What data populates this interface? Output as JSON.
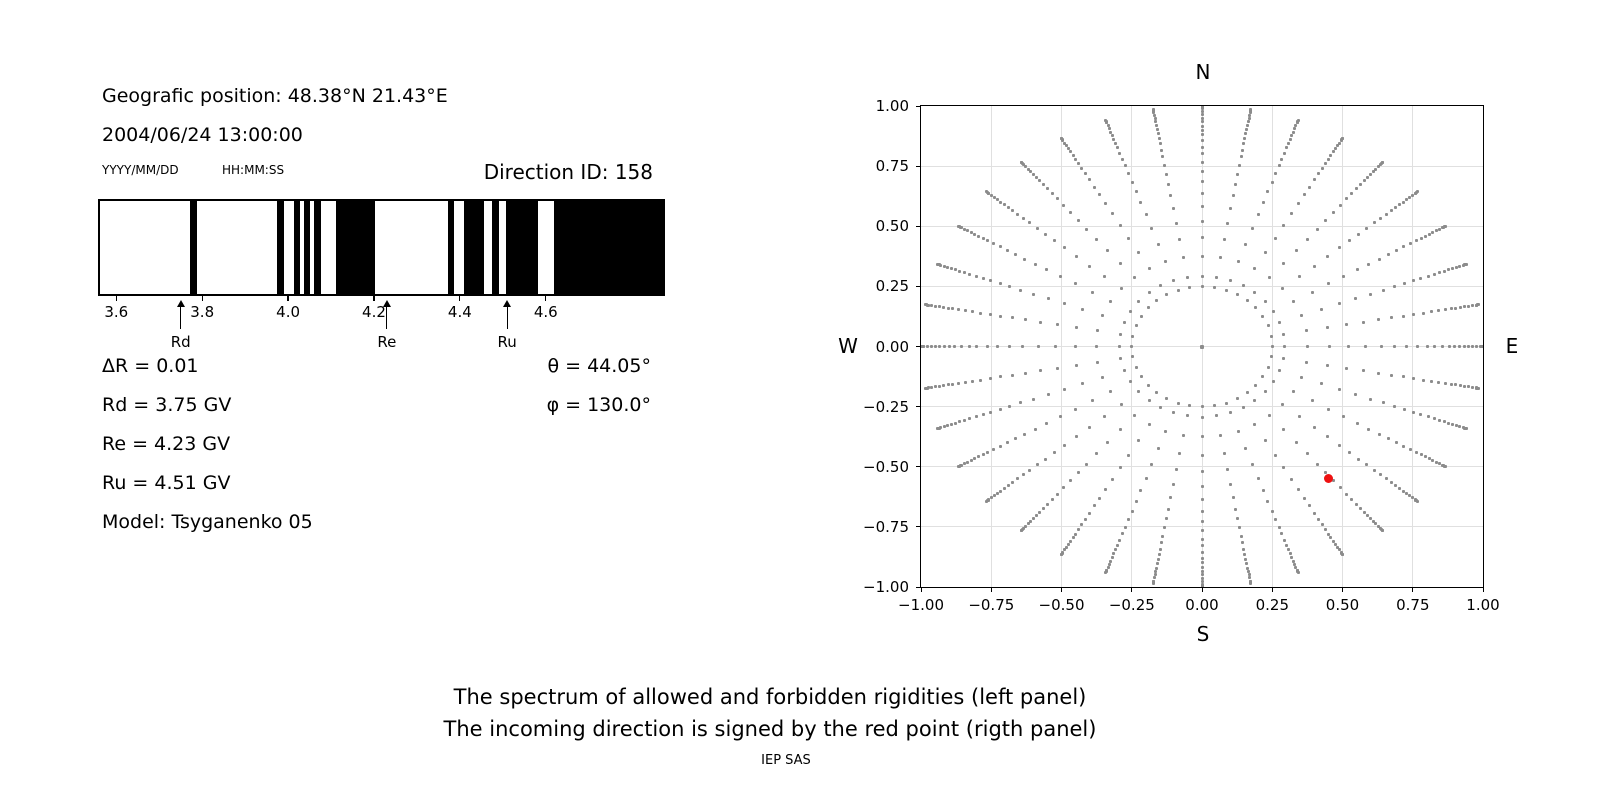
{
  "header": {
    "position_line": "Geografic position: 48.38°N 21.43°E",
    "datetime_line": "2004/06/24 13:00:00",
    "date_format_label": "YYYY/MM/DD",
    "time_format_label": "HH:MM:SS",
    "direction_id": "Direction ID: 158"
  },
  "left_values": {
    "delta_r": "ΔR = 0.01",
    "rd": "Rd = 3.75 GV",
    "re": "Re = 4.23 GV",
    "ru": "Ru = 4.51 GV",
    "model": "Model: Tsyganenko 05",
    "theta": "θ = 44.05°",
    "phi": "φ = 130.0°"
  },
  "caption": {
    "line1": "The spectrum of allowed and forbidden rigidities (left panel)",
    "line2": "The incoming direction is signed by the red point (rigth panel)",
    "footer": "IEP SAS"
  },
  "chart_data": [
    {
      "name": "rigidity-spectrum",
      "type": "bar",
      "description": "Barcode spectrum: black bands = allowed rigidities, white = forbidden",
      "xlim": [
        3.562,
        4.873
      ],
      "xticks": [
        3.6,
        3.8,
        4.0,
        4.2,
        4.4,
        4.6
      ],
      "xtick_labels": [
        "3.6",
        "3.8",
        "4.0",
        "4.2",
        "4.4",
        "4.6"
      ],
      "allowed_bands_gv": [
        [
          3.771,
          3.788
        ],
        [
          3.975,
          3.991
        ],
        [
          4.014,
          4.028
        ],
        [
          4.038,
          4.051
        ],
        [
          4.061,
          4.077
        ],
        [
          4.112,
          4.202
        ],
        [
          4.373,
          4.387
        ],
        [
          4.41,
          4.456
        ],
        [
          4.475,
          4.491
        ],
        [
          4.507,
          4.583
        ],
        [
          4.618,
          4.873
        ]
      ],
      "colors": {
        "allowed": "#000000",
        "forbidden": "#ffffff"
      },
      "markers": [
        {
          "label": "Rd",
          "value": 3.75
        },
        {
          "label": "Re",
          "value": 4.23
        },
        {
          "label": "Ru",
          "value": 4.51
        }
      ]
    },
    {
      "name": "incoming-direction-map",
      "type": "scatter",
      "description": "Asymptotic direction map: gray dot rays every 10 degrees from inner ring r=0.25 out to r=1.0; red point marks incoming direction",
      "xlim": [
        -1,
        1
      ],
      "ylim": [
        -1,
        1
      ],
      "ticks": [
        -1,
        -0.75,
        -0.5,
        -0.25,
        0,
        0.25,
        0.5,
        0.75,
        1
      ],
      "tick_labels": [
        "−1.00",
        "−0.75",
        "−0.50",
        "−0.25",
        "0.00",
        "0.25",
        "0.50",
        "0.75",
        "1.00"
      ],
      "compass": {
        "n": "N",
        "s": "S",
        "e": "E",
        "w": "W"
      },
      "ray_angles_deg": [
        0,
        10,
        20,
        30,
        40,
        50,
        60,
        70,
        80,
        90,
        100,
        110,
        120,
        130,
        140,
        150,
        160,
        170,
        180,
        190,
        200,
        210,
        220,
        230,
        240,
        250,
        260,
        270,
        280,
        290,
        300,
        310,
        320,
        330,
        340,
        350
      ],
      "ray_radii": [
        1.0,
        0.997,
        0.993,
        0.99,
        0.976,
        0.963,
        0.949,
        0.935,
        0.917,
        0.9,
        0.88,
        0.856,
        0.829,
        0.801,
        0.765,
        0.728,
        0.686,
        0.638,
        0.583,
        0.521,
        0.452,
        0.376,
        0.293,
        0.25
      ],
      "inner_ring_radius": 0.25,
      "center_point": [
        0,
        0
      ],
      "red_point": [
        0.45,
        -0.55
      ],
      "grid": true,
      "grid_color": "#e0e0e0",
      "dot_color": "#8c8c8c",
      "red_color": "#ee1111"
    }
  ]
}
